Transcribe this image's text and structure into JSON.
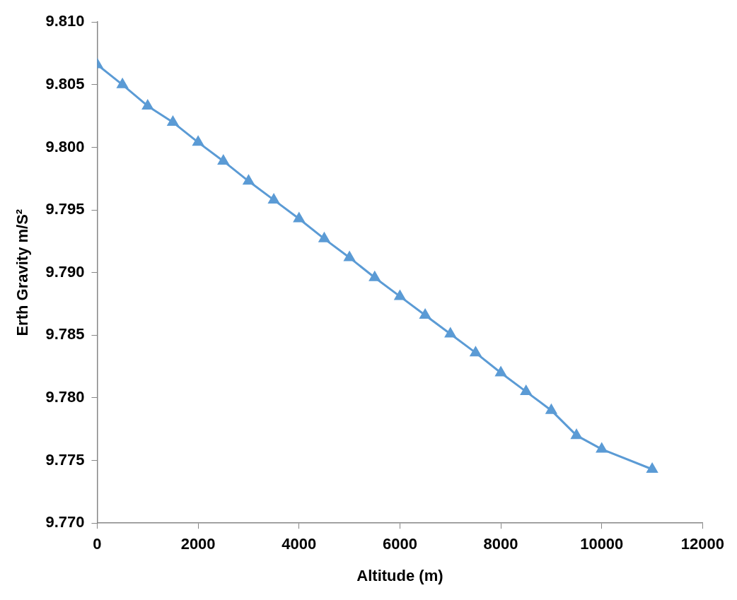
{
  "chart_data": {
    "type": "line",
    "xlabel": "Altitude (m)",
    "ylabel": "Erth Gravity m/S²",
    "x": [
      0,
      500,
      1000,
      1500,
      2000,
      2500,
      3000,
      3500,
      4000,
      4500,
      5000,
      5500,
      6000,
      6500,
      7000,
      7500,
      8000,
      8500,
      9000,
      9500,
      10000,
      11000
    ],
    "series": [
      {
        "color": "#5b9bd5",
        "values": [
          9.8066,
          9.805,
          9.8033,
          9.802,
          9.8004,
          9.7989,
          9.7973,
          9.7958,
          9.7943,
          9.7927,
          9.7912,
          9.7896,
          9.7881,
          9.7866,
          9.7851,
          9.7836,
          9.782,
          9.7805,
          9.779,
          9.777,
          9.7759,
          9.7743
        ]
      }
    ],
    "xlim": [
      0,
      12000
    ],
    "xticks": [
      0,
      2000,
      4000,
      6000,
      8000,
      10000,
      12000
    ],
    "ylim": [
      9.77,
      9.81
    ],
    "yticks": [
      {
        "value": 9.77,
        "label": "9.770"
      },
      {
        "value": 9.775,
        "label": "9.775"
      },
      {
        "value": 9.78,
        "label": "9.780"
      },
      {
        "value": 9.785,
        "label": "9.785"
      },
      {
        "value": 9.79,
        "label": "9.790"
      },
      {
        "value": 9.795,
        "label": "9.795"
      },
      {
        "value": 9.8,
        "label": "9.800"
      },
      {
        "value": 9.805,
        "label": "9.805"
      },
      {
        "value": 9.81,
        "label": "9.810"
      }
    ],
    "grid": false,
    "legend": false,
    "marker": "triangle",
    "line_style": "solid"
  }
}
